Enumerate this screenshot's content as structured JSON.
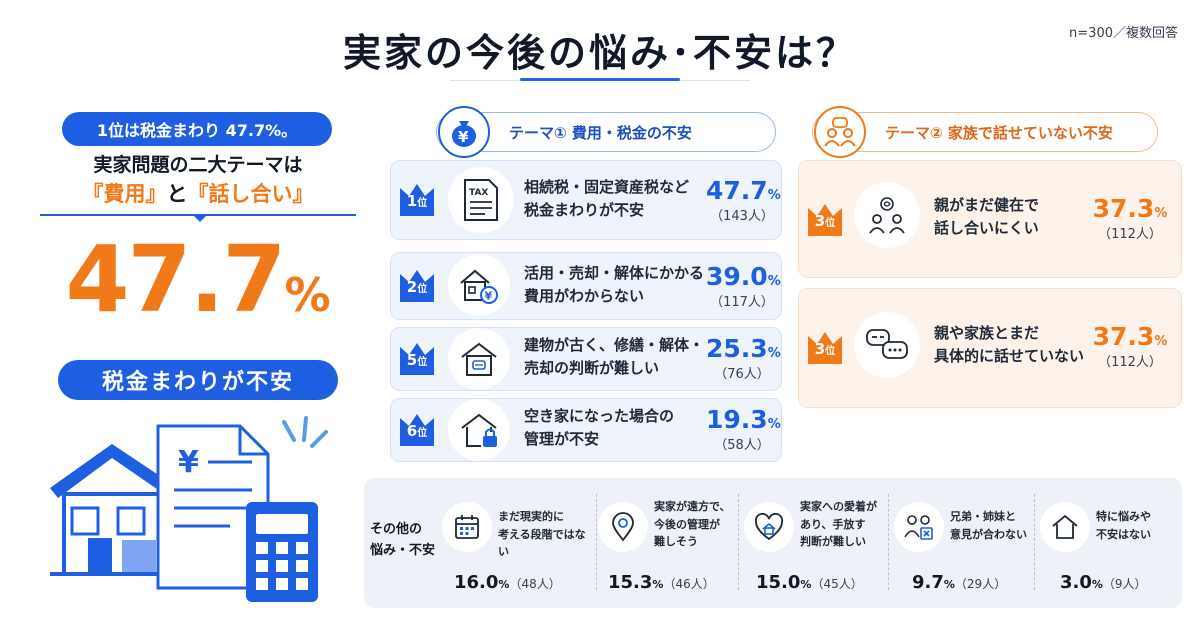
{
  "header": {
    "title": "実家の今後の悩み･不安は？",
    "sample_note": "n=300／複数回答"
  },
  "summary": {
    "badge": "1位は税金まわり 47.7%。",
    "lead_line1": "実家問題の二大テーマは",
    "lead_line2_open": "『費用』",
    "lead_line2_mid": "と",
    "lead_line2_close": "『話し合い』",
    "big_value": "47.7",
    "big_unit": "%",
    "big_caption": "税金まわりが不安"
  },
  "theme1": {
    "label": "テーマ① 費用・税金の不安",
    "icon": "money-bag-yen-icon",
    "items": [
      {
        "rank": "1",
        "rank_suffix": "位",
        "icon": "tax-document-icon",
        "icon_text": "TAX",
        "line1": "相続税・固定資産税など",
        "line2": "税金まわりが不安",
        "value": "47.7",
        "unit": "%",
        "count": "（143人）"
      },
      {
        "rank": "2",
        "rank_suffix": "位",
        "icon": "house-yen-icon",
        "line1": "活用・売却・解体にかかる",
        "line2": "費用がわからない",
        "value": "39.0",
        "unit": "%",
        "count": "（117人）"
      },
      {
        "rank": "5",
        "rank_suffix": "位",
        "icon": "house-repair-icon",
        "line1": "建物が古く、修繕・解体・",
        "line2": "売却の判断が難しい",
        "value": "25.3",
        "unit": "%",
        "count": "（76人）"
      },
      {
        "rank": "6",
        "rank_suffix": "位",
        "icon": "house-lock-icon",
        "line1": "空き家になった場合の",
        "line2": "管理が不安",
        "value": "19.3",
        "unit": "%",
        "count": "（58人）"
      }
    ]
  },
  "theme2": {
    "label": "テーマ② 家族で話せていない不安",
    "icon": "family-talk-icon",
    "items": [
      {
        "rank": "3",
        "rank_suffix": "位",
        "icon": "parents-thinking-icon",
        "line1": "親がまだ健在で",
        "line2": "話し合いにくい",
        "value": "37.3",
        "unit": "%",
        "count": "（112人）"
      },
      {
        "rank": "3",
        "rank_suffix": "位",
        "icon": "speech-bubbles-icon",
        "line1": "親や家族とまだ",
        "line2": "具体的に話せていない",
        "value": "37.3",
        "unit": "%",
        "count": "（112人）"
      }
    ]
  },
  "others": {
    "label_line1": "その他の",
    "label_line2": "悩み・不安",
    "items": [
      {
        "icon": "calendar-icon",
        "line1": "まだ現実的に",
        "line2": "考える段階ではない",
        "line3": "",
        "value": "16.0",
        "unit": "%",
        "count": "（48人）"
      },
      {
        "icon": "location-pin-icon",
        "line1": "実家が遠方で、",
        "line2": "今後の管理が",
        "line3": "難しそう",
        "value": "15.3",
        "unit": "%",
        "count": "（46人）"
      },
      {
        "icon": "house-heart-icon",
        "line1": "実家への愛着が",
        "line2": "あり、手放す",
        "line3": "判断が難しい",
        "value": "15.0",
        "unit": "%",
        "count": "（45人）"
      },
      {
        "icon": "siblings-disagree-icon",
        "line1": "兄弟・姉妹と",
        "line2": "意見が合わない",
        "line3": "",
        "value": "9.7",
        "unit": "%",
        "count": "（29人）"
      },
      {
        "icon": "house-outline-icon",
        "line1": "特に悩みや",
        "line2": "不安はない",
        "line3": "",
        "value": "3.0",
        "unit": "%",
        "count": "（9人）"
      }
    ]
  },
  "illustration": {
    "yen_symbol": "¥",
    "icons": [
      "house-icon",
      "receipt-yen-icon",
      "calculator-icon"
    ]
  },
  "colors": {
    "blue": "#1d5fe0",
    "orange": "#f07a1a",
    "blue_card": "#eef3fc",
    "orange_card": "#fdf3ea"
  }
}
